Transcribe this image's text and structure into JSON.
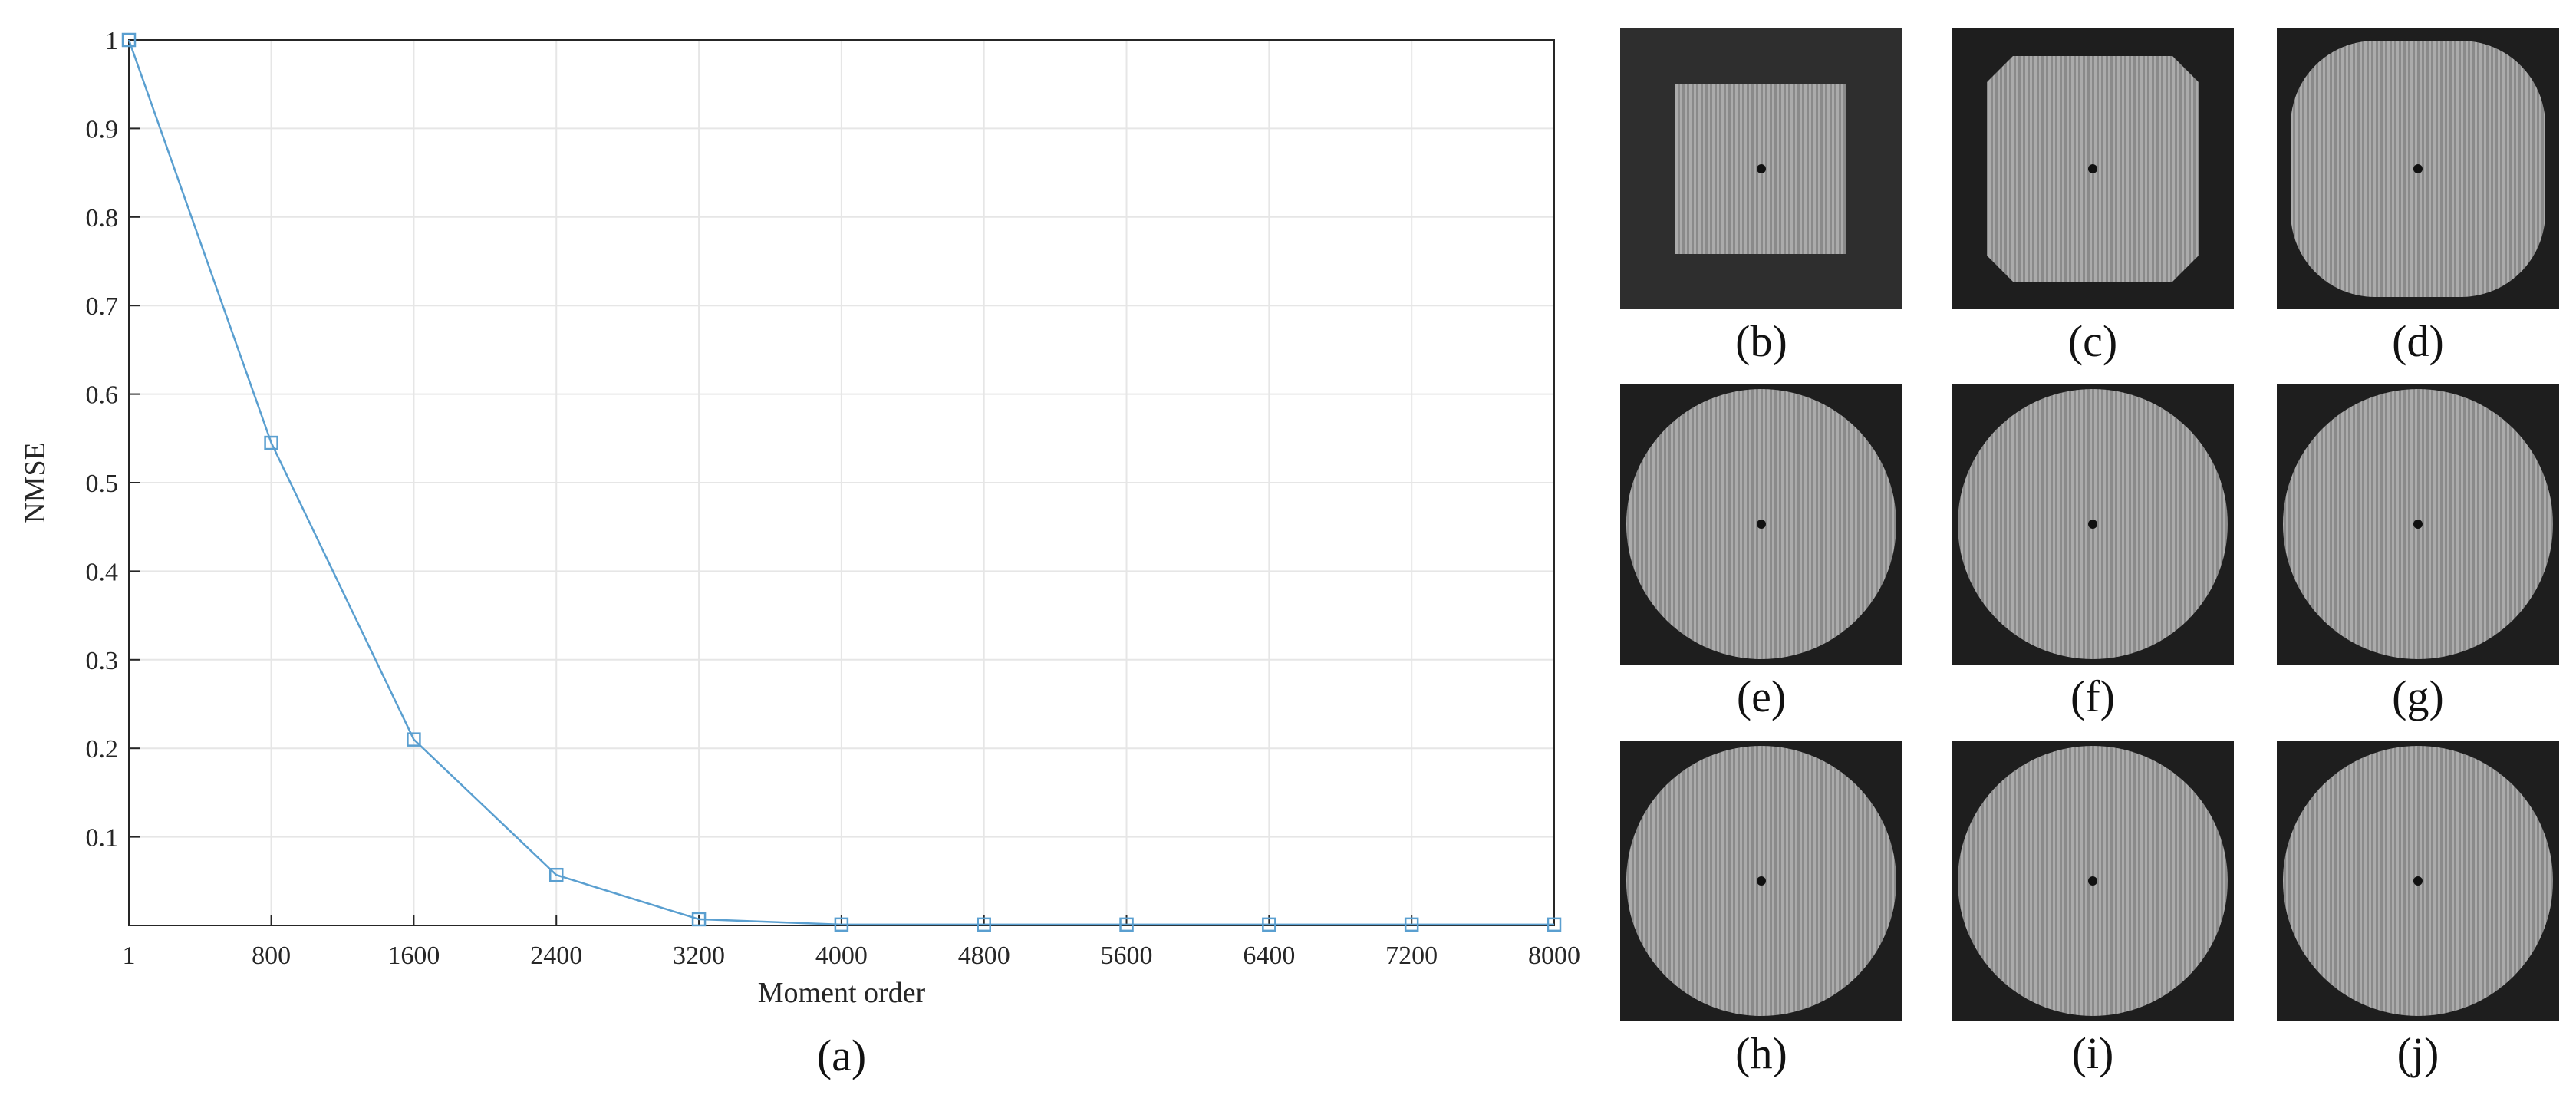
{
  "chart_data": {
    "type": "line",
    "title": "",
    "xlabel": "Moment order",
    "ylabel": "NMSE",
    "panel_label": "(a)",
    "x": [
      1,
      800,
      1600,
      2400,
      3200,
      4000,
      4800,
      5600,
      6400,
      7200,
      8000
    ],
    "x_tick_labels": [
      "1",
      "800",
      "1600",
      "2400",
      "3200",
      "4000",
      "4800",
      "5600",
      "6400",
      "7200",
      "8000"
    ],
    "y_tick_values": [
      0.1,
      0.2,
      0.3,
      0.4,
      0.5,
      0.6,
      0.7,
      0.8,
      0.9,
      1
    ],
    "y_tick_labels": [
      "0.1",
      "0.2",
      "0.3",
      "0.4",
      "0.5",
      "0.6",
      "0.7",
      "0.8",
      "0.9",
      "1"
    ],
    "xlim": [
      1,
      8000
    ],
    "ylim": [
      0,
      1
    ],
    "grid": true,
    "series": [
      {
        "values": [
          1.0,
          0.545,
          0.21,
          0.057,
          0.007,
          0.001,
          0.001,
          0.001,
          0.001,
          0.001,
          0.001
        ],
        "color": "#5a9fd0",
        "marker": "square"
      }
    ]
  },
  "thumbnails": [
    {
      "label": "(b)",
      "shape": "square",
      "background": "#2e2e2e"
    },
    {
      "label": "(c)",
      "shape": "clipped-square",
      "background": "#1e1e1e"
    },
    {
      "label": "(d)",
      "shape": "rounded-square",
      "background": "#1e1e1e"
    },
    {
      "label": "(e)",
      "shape": "circle",
      "background": "#1e1e1e"
    },
    {
      "label": "(f)",
      "shape": "circle",
      "background": "#1e1e1e"
    },
    {
      "label": "(g)",
      "shape": "circle",
      "background": "#1e1e1e"
    },
    {
      "label": "(h)",
      "shape": "circle",
      "background": "#1e1e1e"
    },
    {
      "label": "(i)",
      "shape": "circle",
      "background": "#1e1e1e"
    },
    {
      "label": "(j)",
      "shape": "circle",
      "background": "#1e1e1e"
    }
  ]
}
